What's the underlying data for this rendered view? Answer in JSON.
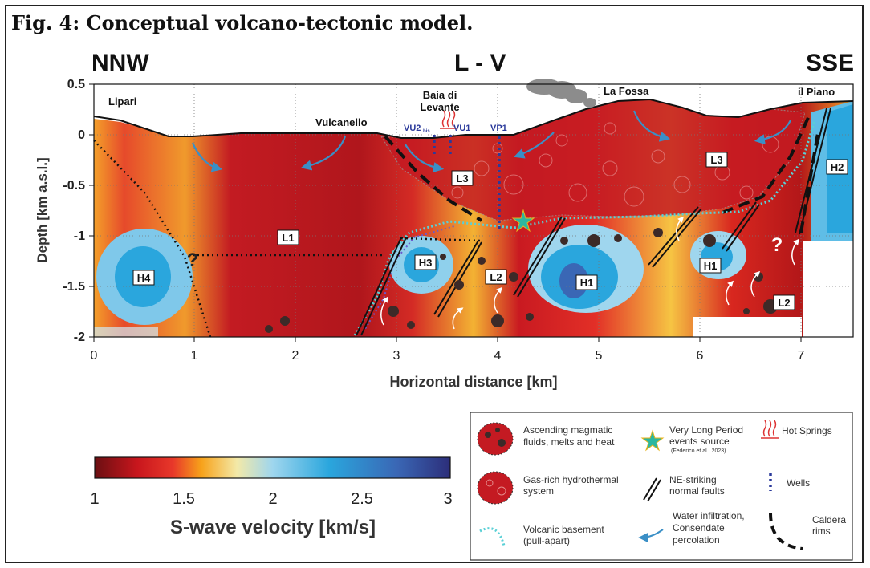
{
  "figure": {
    "title": "Fig. 4: Conceptual volcano-tectonic model.",
    "left_direction": "NNW",
    "profile_name": "L - V",
    "right_direction": "SSE"
  },
  "axes": {
    "y_label": "Depth [km a.s.l.]",
    "x_label": "Horizontal distance [km]",
    "y_ticks": [
      "0.5",
      "0",
      "-0.5",
      "-1",
      "-1.5",
      "-2"
    ],
    "x_ticks": [
      "0",
      "1",
      "2",
      "3",
      "4",
      "5",
      "6",
      "7"
    ]
  },
  "places": {
    "lipari": "Lipari",
    "vulcanello": "Vulcanello",
    "baia_line1": "Baia di",
    "baia_line2": "Levante",
    "la_fossa": "La Fossa",
    "il_piano": "il Piano"
  },
  "wells": {
    "vu2": "VU2",
    "vu2_sub": "bis",
    "vu1": "VU1",
    "vp1": "VP1"
  },
  "zones": {
    "h4": "H4",
    "l1": "L1",
    "h3": "H3",
    "l3a": "L3",
    "l2a": "L2",
    "h1a": "H1",
    "l3b": "L3",
    "h1b": "H1",
    "h2": "H2",
    "l2b": "L2",
    "q1": "?",
    "q2": "?"
  },
  "colorbar": {
    "label": "S-wave velocity [km/s]",
    "ticks": [
      "1",
      "1.5",
      "2",
      "2.5",
      "3"
    ],
    "colors": [
      "#6b0f12",
      "#c8161d",
      "#e8382a",
      "#f7a21a",
      "#f3e9a8",
      "#9fd6ee",
      "#2aa6dd",
      "#3a67b5",
      "#2c2e7a"
    ]
  },
  "legend": {
    "magmatic": "Ascending magmatic fluids, melts and heat",
    "vlp_line1": "Very Long Period",
    "vlp_line2": "events source",
    "vlp_ref": "(Federico et al., 2023)",
    "hot_springs": "Hot Springs",
    "gas_line1": "Gas-rich hydrothermal",
    "gas_line2": "system",
    "faults_line1": "NE-striking",
    "faults_line2": "normal faults",
    "wells": "Wells",
    "basement_line1": "Volcanic basement",
    "basement_line2": "(pull-apart)",
    "water_line1": "Water infiltration,",
    "water_line2": "Consendate",
    "water_line3": "percolation",
    "caldera_line1": "Caldera",
    "caldera_line2": "rims"
  }
}
